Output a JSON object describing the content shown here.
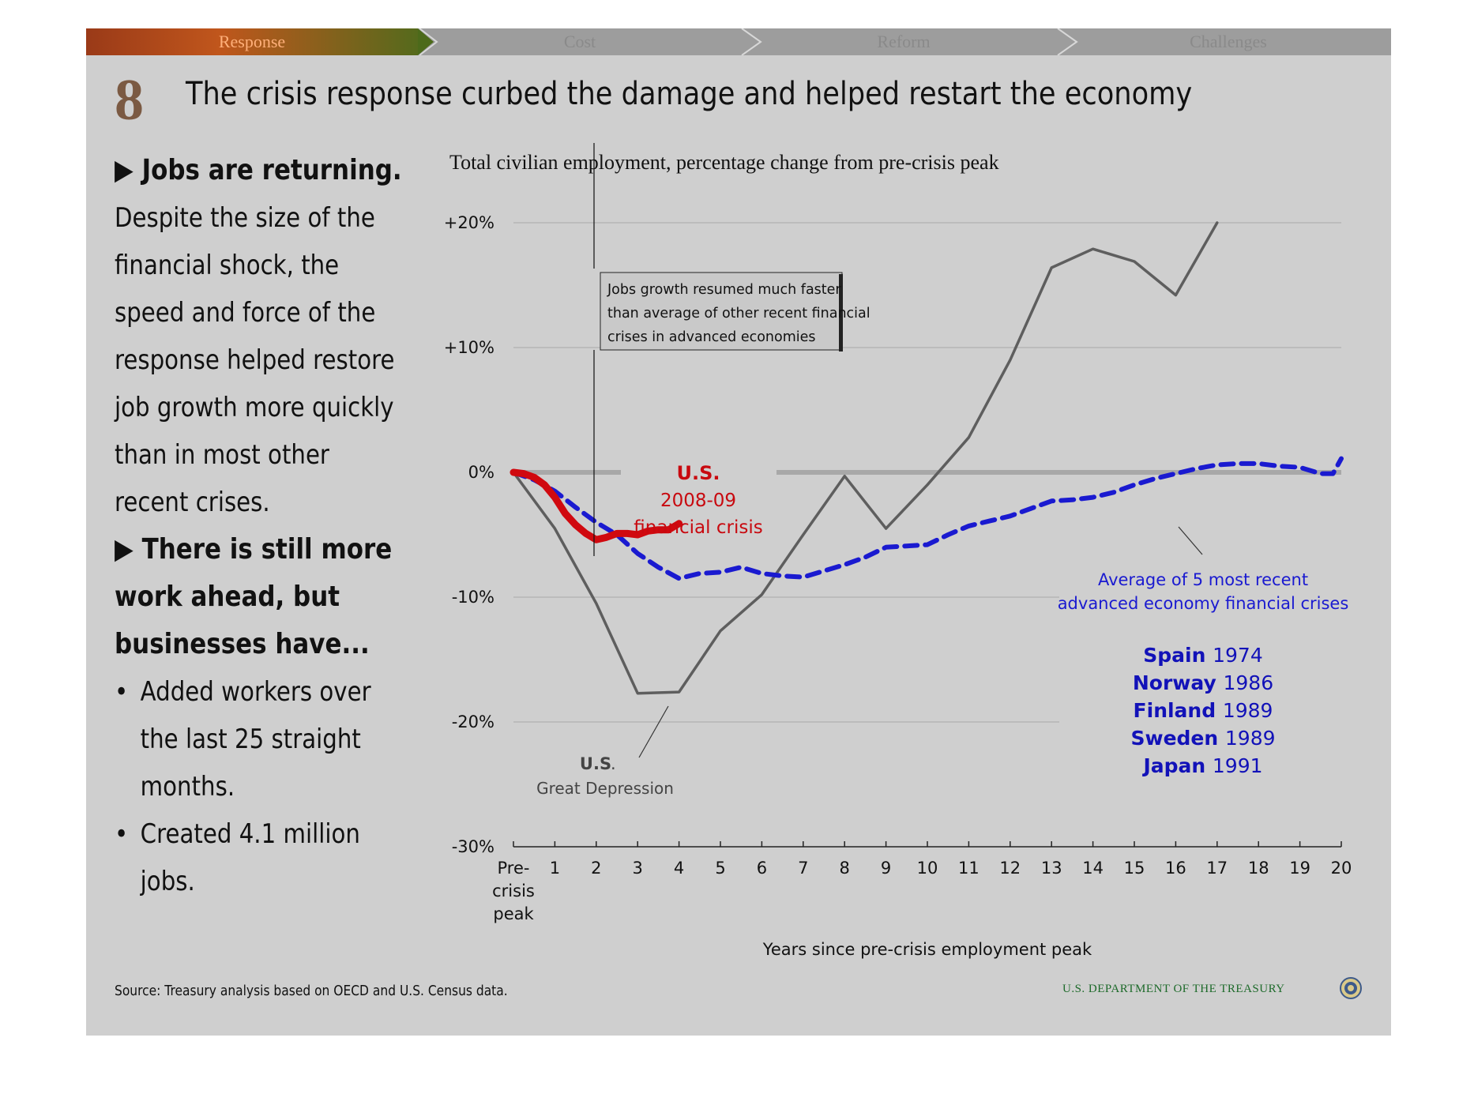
{
  "nav": {
    "tabs": [
      "Response",
      "Cost",
      "Reform",
      "Challenges"
    ]
  },
  "slide": {
    "number": "8",
    "title": "The crisis response curbed the damage and helped restart the economy"
  },
  "left": {
    "heading1": "Jobs are returning.",
    "para1": [
      "Despite the size of the",
      "financial shock, the",
      "speed and force of the",
      "response helped restore",
      "job growth more quickly",
      "than in most other",
      "recent crises."
    ],
    "heading2": [
      "There is still more",
      "work ahead, but",
      "businesses have..."
    ],
    "bullets": [
      [
        "Added workers over",
        "the last 25 straight",
        "months."
      ],
      [
        "Created 4.1 million",
        "jobs."
      ]
    ]
  },
  "footer": {
    "source": "Source: Treasury analysis based on OECD and U.S. Census data.",
    "agency": "U.S. DEPARTMENT OF THE TREASURY"
  },
  "chart_data": {
    "type": "line",
    "title": "Total civilian employment, percentage change from pre-crisis peak",
    "xlabel": "Years since pre-crisis employment peak",
    "ylabel": "",
    "xlim": [
      0,
      20
    ],
    "ylim": [
      -30,
      20
    ],
    "y_ticks": [
      20,
      10,
      0,
      -10,
      -20,
      -30
    ],
    "y_tick_labels": [
      "+20%",
      "+10%",
      "0%",
      "-10%",
      "-20%",
      "-30%"
    ],
    "x_tick_labels": [
      "Pre-\ncrisis\npeak",
      "1",
      "2",
      "3",
      "4",
      "5",
      "6",
      "7",
      "8",
      "9",
      "10",
      "11",
      "12",
      "13",
      "14",
      "15",
      "16",
      "17",
      "18",
      "19",
      "20"
    ],
    "series": [
      {
        "name": "U.S. Great Depression",
        "color": "#5e5e5e",
        "style": "solid",
        "x": [
          0,
          1,
          2,
          3,
          4,
          5,
          6,
          7,
          8,
          9,
          10,
          11,
          12,
          13,
          14,
          15,
          16,
          17
        ],
        "y": [
          0,
          -4.5,
          -10.5,
          -17.7,
          -17.6,
          -12.7,
          -9.8,
          -5,
          -0.3,
          -4.5,
          -1,
          2.8,
          9,
          16.4,
          17.9,
          16.9,
          14.2,
          20
        ]
      },
      {
        "name": "Average of 5 most recent advanced economy financial crises",
        "color": "#1a1ad0",
        "style": "dashed",
        "x": [
          0,
          0.5,
          1,
          1.5,
          2,
          2.5,
          3,
          3.5,
          4,
          4.5,
          5,
          5.5,
          6,
          6.5,
          7,
          7.5,
          8,
          8.5,
          9,
          9.5,
          10,
          10.5,
          11,
          11.5,
          12,
          12.5,
          13,
          13.5,
          14,
          14.5,
          15,
          15.5,
          16,
          16.5,
          17,
          17.5,
          18,
          18.5,
          19,
          19.5,
          19.8,
          20
        ],
        "y": [
          0,
          -0.6,
          -1.5,
          -2.8,
          -4,
          -5,
          -6.5,
          -7.6,
          -8.5,
          -8.1,
          -8,
          -7.6,
          -8.1,
          -8.3,
          -8.4,
          -7.9,
          -7.4,
          -6.8,
          -6,
          -5.9,
          -5.8,
          -5,
          -4.3,
          -3.9,
          -3.5,
          -2.9,
          -2.3,
          -2.2,
          -2,
          -1.6,
          -1,
          -0.5,
          -0.1,
          0.3,
          0.6,
          0.7,
          0.7,
          0.5,
          0.4,
          -0.1,
          -0.1,
          1.1
        ]
      },
      {
        "name": "U.S. 2008-09 financial crisis",
        "color": "#d0090f",
        "style": "solid",
        "x": [
          0,
          0.25,
          0.5,
          0.75,
          1,
          1.25,
          1.5,
          1.75,
          2,
          2.25,
          2.5,
          2.75,
          3,
          3.25,
          3.5,
          3.75,
          4
        ],
        "y": [
          0,
          -0.1,
          -0.4,
          -1,
          -2,
          -3.3,
          -4.2,
          -4.9,
          -5.4,
          -5.2,
          -4.9,
          -4.9,
          -5,
          -4.7,
          -4.6,
          -4.6,
          -4.1
        ]
      }
    ],
    "annotations": {
      "callout": [
        "Jobs growth resumed much faster",
        "than average of other recent financial",
        "crises in advanced economies"
      ],
      "us_label_bold": "U.S.",
      "us_label_rest": [
        "2008-09",
        "financial crisis"
      ],
      "depression_bold": "U.S",
      "depression_dot": ".",
      "depression_rest": "Great Depression",
      "avg_label": [
        "Average of 5 most recent",
        "advanced economy financial crises"
      ],
      "crises": [
        {
          "country": "Spain",
          "year": "1974"
        },
        {
          "country": "Norway",
          "year": "1986"
        },
        {
          "country": "Finland",
          "year": "1989"
        },
        {
          "country": "Sweden",
          "year": "1989"
        },
        {
          "country": "Japan",
          "year": "1991"
        }
      ]
    },
    "grid": true,
    "legend": "none"
  }
}
